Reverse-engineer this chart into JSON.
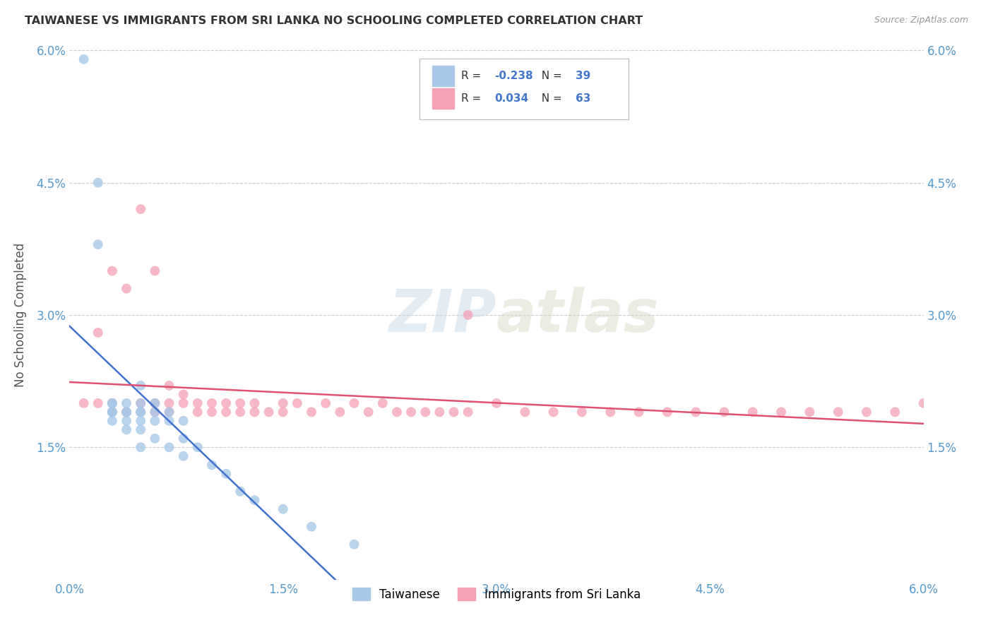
{
  "title": "TAIWANESE VS IMMIGRANTS FROM SRI LANKA NO SCHOOLING COMPLETED CORRELATION CHART",
  "source": "Source: ZipAtlas.com",
  "ylabel": "No Schooling Completed",
  "xlim": [
    0.0,
    0.06
  ],
  "ylim": [
    0.0,
    0.06
  ],
  "xtick_labels": [
    "0.0%",
    "",
    "",
    "",
    "1.5%",
    "",
    "",
    "",
    "3.0%",
    "",
    "",
    "",
    "4.5%",
    "",
    "",
    "",
    "6.0%"
  ],
  "xtick_positions": [
    0.0,
    0.00375,
    0.0075,
    0.01125,
    0.015,
    0.01875,
    0.0225,
    0.02625,
    0.03,
    0.03375,
    0.0375,
    0.04125,
    0.045,
    0.04875,
    0.0525,
    0.05625,
    0.06
  ],
  "ytick_labels": [
    "1.5%",
    "3.0%",
    "4.5%",
    "6.0%"
  ],
  "ytick_positions": [
    0.015,
    0.03,
    0.045,
    0.06
  ],
  "watermark_zip": "ZIP",
  "watermark_atlas": "atlas",
  "legend_label1": "Taiwanese",
  "legend_label2": "Immigrants from Sri Lanka",
  "r1": -0.238,
  "n1": 39,
  "r2": 0.034,
  "n2": 63,
  "color_blue": "#a8c8e8",
  "color_pink": "#f4a0b5",
  "line_color_blue": "#4070d0",
  "line_color_pink": "#e05070",
  "taiwanese_x": [
    0.001,
    0.002,
    0.002,
    0.003,
    0.003,
    0.003,
    0.003,
    0.003,
    0.003,
    0.004,
    0.004,
    0.004,
    0.004,
    0.004,
    0.005,
    0.005,
    0.005,
    0.005,
    0.005,
    0.005,
    0.005,
    0.006,
    0.006,
    0.006,
    0.006,
    0.007,
    0.007,
    0.007,
    0.008,
    0.008,
    0.008,
    0.009,
    0.01,
    0.011,
    0.012,
    0.013,
    0.015,
    0.017,
    0.02
  ],
  "taiwanese_y": [
    0.059,
    0.045,
    0.038,
    0.02,
    0.02,
    0.019,
    0.019,
    0.019,
    0.018,
    0.02,
    0.019,
    0.019,
    0.018,
    0.017,
    0.022,
    0.02,
    0.019,
    0.019,
    0.018,
    0.017,
    0.015,
    0.02,
    0.019,
    0.018,
    0.016,
    0.019,
    0.018,
    0.015,
    0.018,
    0.016,
    0.014,
    0.015,
    0.013,
    0.012,
    0.01,
    0.009,
    0.008,
    0.006,
    0.004
  ],
  "srilanka_x": [
    0.001,
    0.002,
    0.002,
    0.003,
    0.003,
    0.003,
    0.004,
    0.004,
    0.004,
    0.005,
    0.005,
    0.005,
    0.006,
    0.006,
    0.006,
    0.007,
    0.007,
    0.007,
    0.008,
    0.008,
    0.009,
    0.009,
    0.01,
    0.01,
    0.011,
    0.011,
    0.012,
    0.012,
    0.013,
    0.013,
    0.014,
    0.015,
    0.015,
    0.016,
    0.017,
    0.018,
    0.019,
    0.02,
    0.021,
    0.022,
    0.023,
    0.024,
    0.025,
    0.026,
    0.027,
    0.028,
    0.03,
    0.032,
    0.034,
    0.036,
    0.038,
    0.04,
    0.042,
    0.044,
    0.046,
    0.048,
    0.05,
    0.052,
    0.054,
    0.056,
    0.058,
    0.06,
    0.028
  ],
  "srilanka_y": [
    0.02,
    0.028,
    0.02,
    0.035,
    0.02,
    0.019,
    0.033,
    0.019,
    0.019,
    0.042,
    0.02,
    0.019,
    0.035,
    0.02,
    0.019,
    0.022,
    0.02,
    0.019,
    0.021,
    0.02,
    0.02,
    0.019,
    0.02,
    0.019,
    0.02,
    0.019,
    0.02,
    0.019,
    0.02,
    0.019,
    0.019,
    0.02,
    0.019,
    0.02,
    0.019,
    0.02,
    0.019,
    0.02,
    0.019,
    0.02,
    0.019,
    0.019,
    0.019,
    0.019,
    0.019,
    0.019,
    0.02,
    0.019,
    0.019,
    0.019,
    0.019,
    0.019,
    0.019,
    0.019,
    0.019,
    0.019,
    0.019,
    0.019,
    0.019,
    0.019,
    0.019,
    0.02,
    0.03
  ]
}
